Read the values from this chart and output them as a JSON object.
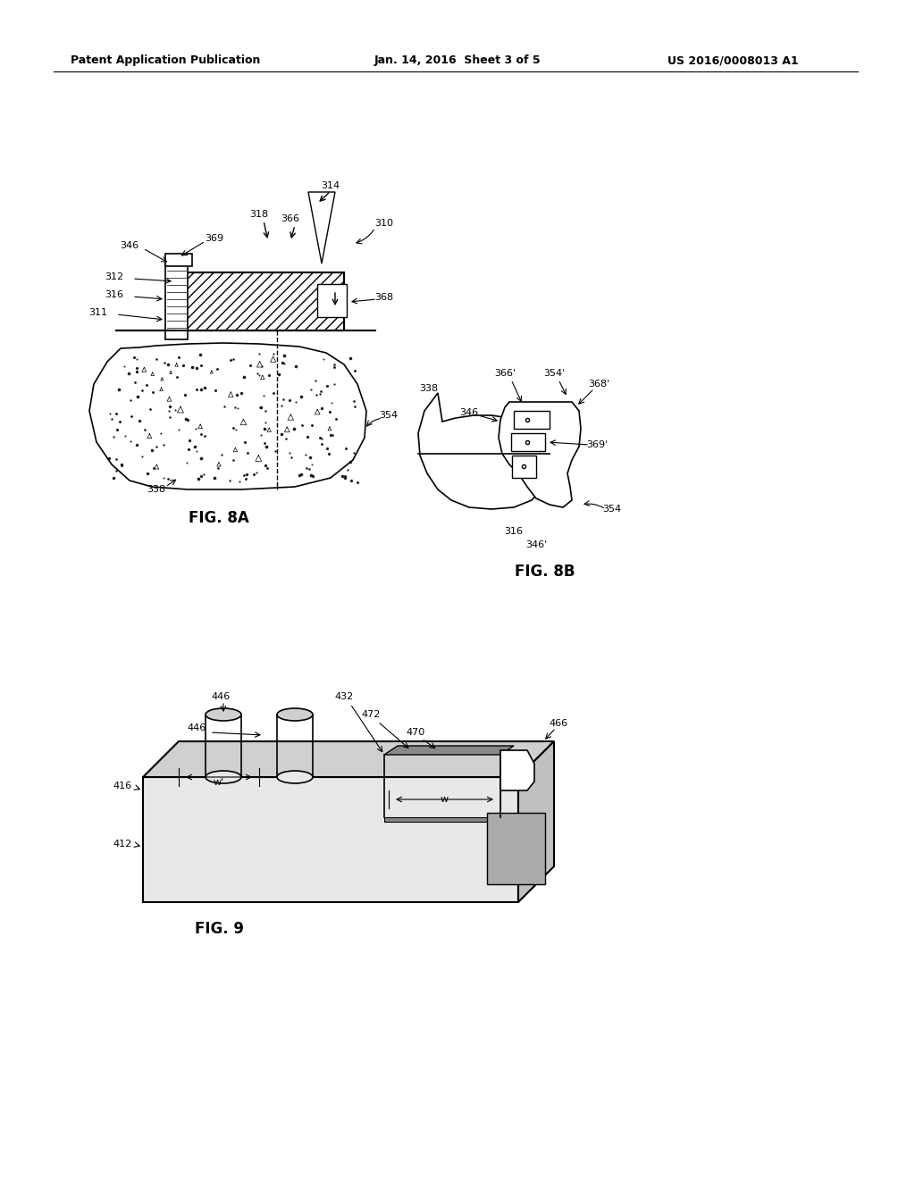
{
  "background_color": "#ffffff",
  "header_left": "Patent Application Publication",
  "header_mid": "Jan. 14, 2016  Sheet 3 of 5",
  "header_right": "US 2016/0008013 A1",
  "fig8a_label": "FIG. 8A",
  "fig8b_label": "FIG. 8B",
  "fig9_label": "FIG. 9",
  "fig8a_annotations": [
    "346",
    "369",
    "318",
    "366",
    "314",
    "310",
    "312",
    "316",
    "311",
    "368",
    "354",
    "338"
  ],
  "fig8b_annotations": [
    "338",
    "366'",
    "354'",
    "368'",
    "346",
    "369'",
    "354",
    "316",
    "346'"
  ],
  "fig9_annotations": [
    "446",
    "432",
    "472",
    "470",
    "466",
    "416",
    "w'",
    "w",
    "412",
    "446"
  ]
}
